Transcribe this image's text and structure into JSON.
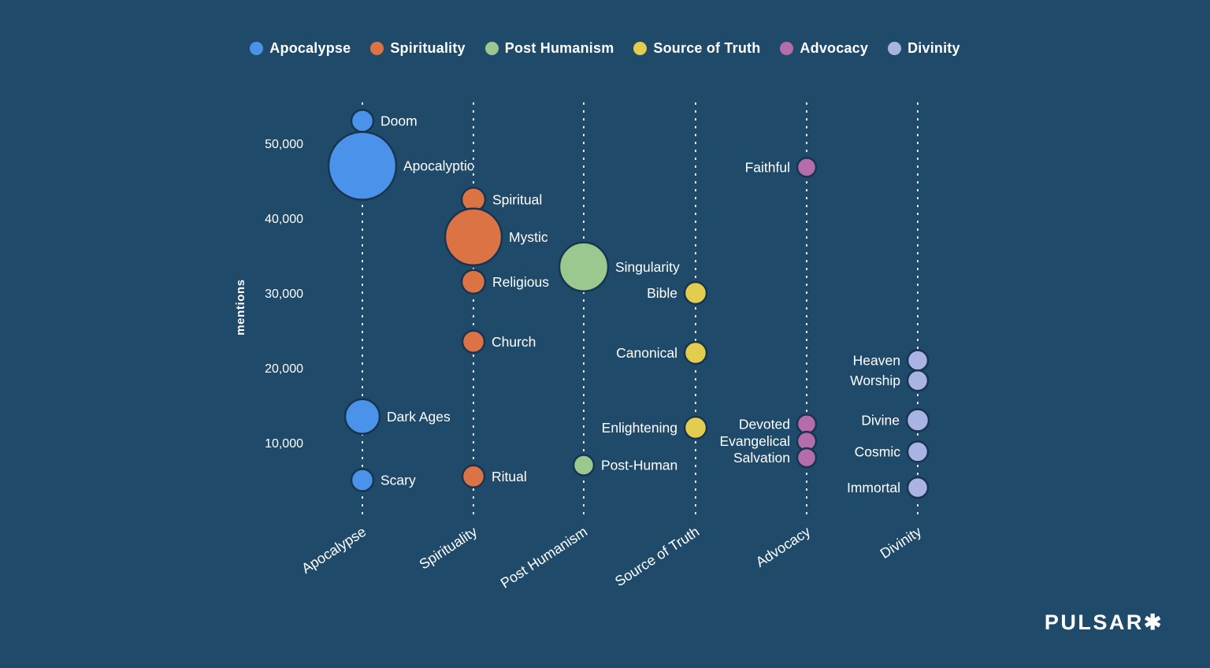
{
  "background_color": "#1f4a6a",
  "legend": {
    "items": [
      {
        "label": "Apocalypse",
        "color": "#4b93ea"
      },
      {
        "label": "Spirituality",
        "color": "#dc7345"
      },
      {
        "label": "Post Humanism",
        "color": "#9bc88f"
      },
      {
        "label": "Source of Truth",
        "color": "#e3cd4e"
      },
      {
        "label": "Advocacy",
        "color": "#b56cab"
      },
      {
        "label": "Divinity",
        "color": "#aab4e2"
      }
    ]
  },
  "chart_data": {
    "type": "bubble",
    "title": "",
    "ylabel": "mentions",
    "yticks": [
      10000,
      20000,
      30000,
      40000,
      50000
    ],
    "ytick_labels": [
      "10,000",
      "20,000",
      "30,000",
      "40,000",
      "50,000"
    ],
    "ylim": [
      0,
      56000
    ],
    "grid": "vertical-dashed-category-lines",
    "legend_position": "top-center",
    "categories": [
      "Apocalypse",
      "Spirituality",
      "Post Humanism",
      "Source of Truth",
      "Advocacy",
      "Divinity"
    ],
    "series": [
      {
        "category": "Apocalypse",
        "color": "#4b93ea",
        "points": [
          {
            "label": "Doom",
            "mentions": 53000,
            "radius": 14,
            "label_side": "right"
          },
          {
            "label": "Apocalyptic",
            "mentions": 47000,
            "radius": 43,
            "label_side": "right"
          },
          {
            "label": "Dark Ages",
            "mentions": 13500,
            "radius": 22,
            "label_side": "right"
          },
          {
            "label": "Scary",
            "mentions": 5000,
            "radius": 14,
            "label_side": "right"
          }
        ]
      },
      {
        "category": "Spirituality",
        "color": "#dc7345",
        "points": [
          {
            "label": "Spiritual",
            "mentions": 42500,
            "radius": 15,
            "label_side": "right"
          },
          {
            "label": "Mystic",
            "mentions": 37500,
            "radius": 36,
            "label_side": "right"
          },
          {
            "label": "Religious",
            "mentions": 31500,
            "radius": 15,
            "label_side": "right"
          },
          {
            "label": "Church",
            "mentions": 23500,
            "radius": 14,
            "label_side": "right"
          },
          {
            "label": "Ritual",
            "mentions": 5500,
            "radius": 14,
            "label_side": "right"
          }
        ]
      },
      {
        "category": "Post Humanism",
        "color": "#9bc88f",
        "points": [
          {
            "label": "Singularity",
            "mentions": 33500,
            "radius": 31,
            "label_side": "right"
          },
          {
            "label": "Post-Human",
            "mentions": 7000,
            "radius": 13,
            "label_side": "right"
          }
        ]
      },
      {
        "category": "Source of Truth",
        "color": "#e3cd4e",
        "points": [
          {
            "label": "Bible",
            "mentions": 30000,
            "radius": 14,
            "label_side": "left"
          },
          {
            "label": "Canonical",
            "mentions": 22000,
            "radius": 14,
            "label_side": "left"
          },
          {
            "label": "Enlightening",
            "mentions": 12000,
            "radius": 14,
            "label_side": "left"
          }
        ]
      },
      {
        "category": "Advocacy",
        "color": "#b56cab",
        "points": [
          {
            "label": "Faithful",
            "mentions": 46800,
            "radius": 12,
            "label_side": "left"
          },
          {
            "label": "Devoted",
            "mentions": 12500,
            "radius": 12,
            "label_side": "left"
          },
          {
            "label": "Evangelical",
            "mentions": 10200,
            "radius": 12,
            "label_side": "left"
          },
          {
            "label": "Salvation",
            "mentions": 8000,
            "radius": 12,
            "label_side": "left"
          }
        ]
      },
      {
        "category": "Divinity",
        "color": "#aab4e2",
        "points": [
          {
            "label": "Heaven",
            "mentions": 21000,
            "radius": 13,
            "label_side": "left"
          },
          {
            "label": "Worship",
            "mentions": 18300,
            "radius": 13,
            "label_side": "left"
          },
          {
            "label": "Divine",
            "mentions": 13000,
            "radius": 14,
            "label_side": "left"
          },
          {
            "label": "Cosmic",
            "mentions": 8800,
            "radius": 13,
            "label_side": "left"
          },
          {
            "label": "Immortal",
            "mentions": 4000,
            "radius": 13,
            "label_side": "left"
          }
        ]
      }
    ]
  },
  "branding": {
    "logo_text": "PULSAR✱"
  }
}
